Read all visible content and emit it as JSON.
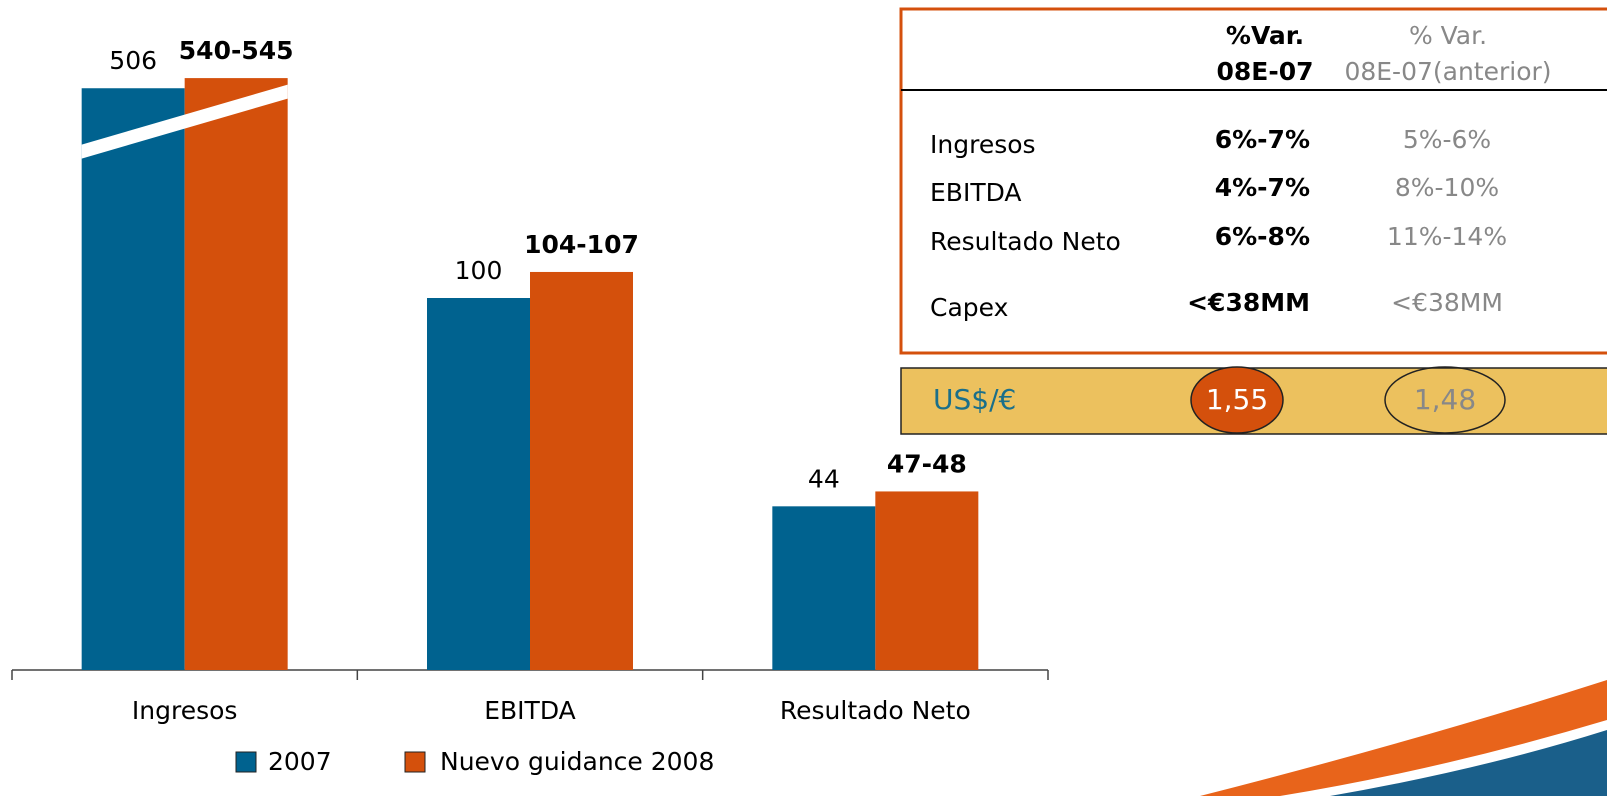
{
  "chart_data": {
    "type": "bar",
    "categories": [
      "Ingresos",
      "EBITDA",
      "Resultado Neto"
    ],
    "series": [
      {
        "name": "2007",
        "color": "#00628f",
        "values": [
          506,
          100,
          44
        ]
      },
      {
        "name": "Nuevo guidance 2008",
        "color": "#d4500c",
        "values": [
          [
            540,
            545
          ],
          [
            104,
            107
          ],
          [
            47,
            48
          ]
        ],
        "value_labels": [
          "540-545",
          "104-107",
          "47-48"
        ]
      }
    ]
  },
  "table": {
    "header": [
      [
        "%Var.",
        "08E-07"
      ],
      [
        "% Var.",
        "08E-07(anterior)"
      ]
    ],
    "rows": [
      [
        "Ingresos",
        "6%-7%",
        "5%-6%"
      ],
      [
        "EBITDA",
        "4%-7%",
        "8%-10%"
      ],
      [
        "Resultado Neto",
        "6%-8%",
        "11%-14%"
      ],
      [
        "Capex",
        "<€38MM",
        "<€38MM"
      ]
    ],
    "fx": [
      "US$/€",
      "1,55",
      "1,48"
    ]
  }
}
